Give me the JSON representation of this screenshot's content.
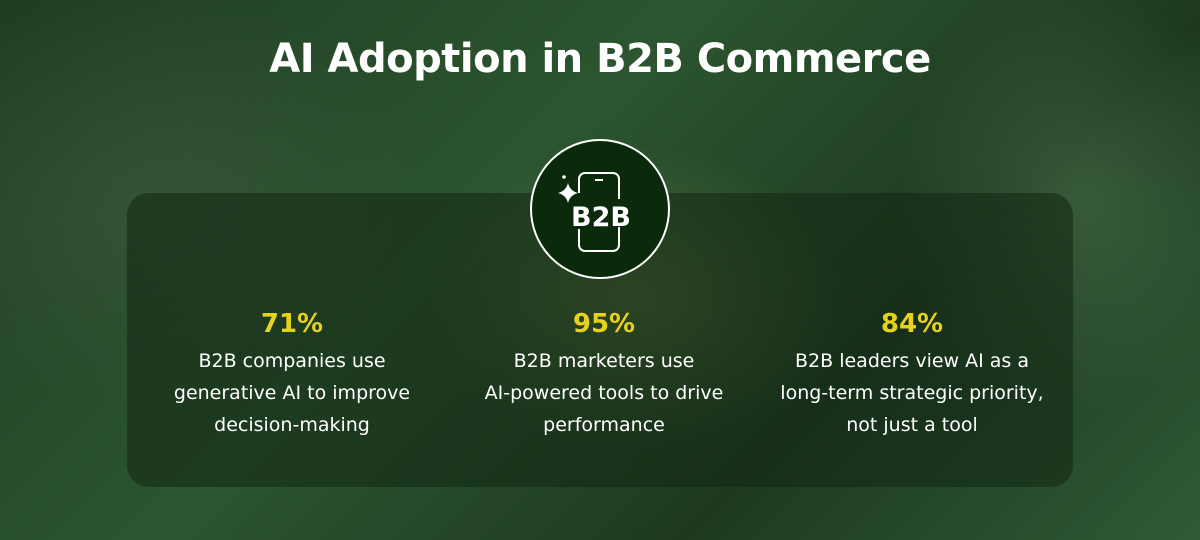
{
  "title": "AI Adoption in B2B Commerce",
  "badge": {
    "icon": "smartphone-sparkle-icon",
    "text": "B2B"
  },
  "stats": [
    {
      "value": "71%",
      "lines": [
        "B2B companies use",
        "generative AI to improve",
        "decision-making"
      ]
    },
    {
      "value": "95%",
      "lines": [
        "B2B marketers use",
        "AI-powered tools to drive",
        "performance"
      ]
    },
    {
      "value": "84%",
      "lines": [
        "B2B leaders view AI as a",
        "long-term strategic priority,",
        "not just a tool"
      ]
    }
  ],
  "colors": {
    "accent": "#e6d21c",
    "badge_bg": "#0b2a0c",
    "background": "#2c5530"
  }
}
